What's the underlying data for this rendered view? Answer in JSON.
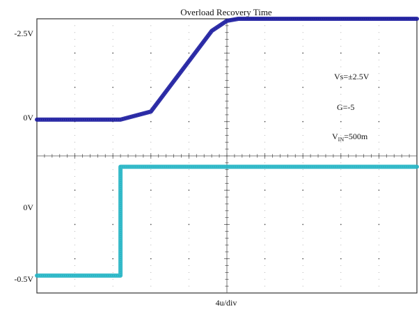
{
  "chart_data": {
    "type": "line",
    "title": "Overload Recovery Time",
    "xlabel": "4u/div",
    "x_divisions": 10,
    "y_divisions": 8,
    "annotations": [
      "Vs=±2.5V",
      "G=-5",
      "500m"
    ],
    "vin_label": {
      "main": "V",
      "sub": "IN",
      "rest": "=500m"
    },
    "colors": {
      "output": "#1a1a9e",
      "input": "#22b4c4",
      "grid": "#555555",
      "frame": "#333333"
    },
    "series": [
      {
        "id": "output",
        "tick_labels": [
          "-2.5V",
          "0V"
        ],
        "ylim": [
          -2.5,
          0.9
        ],
        "x": [
          0,
          2.2,
          3.0,
          4.6,
          5.0,
          5.3,
          10
        ],
        "y": [
          0,
          0,
          -0.2,
          -2.2,
          -2.45,
          -2.5,
          -2.5
        ]
      },
      {
        "id": "input",
        "tick_labels": [
          "0V",
          "-0.5V"
        ],
        "ylim": [
          -0.55,
          0.08
        ],
        "x": [
          0,
          2.2,
          2.2,
          10
        ],
        "y": [
          0,
          0,
          -0.5,
          -0.5
        ]
      }
    ]
  }
}
